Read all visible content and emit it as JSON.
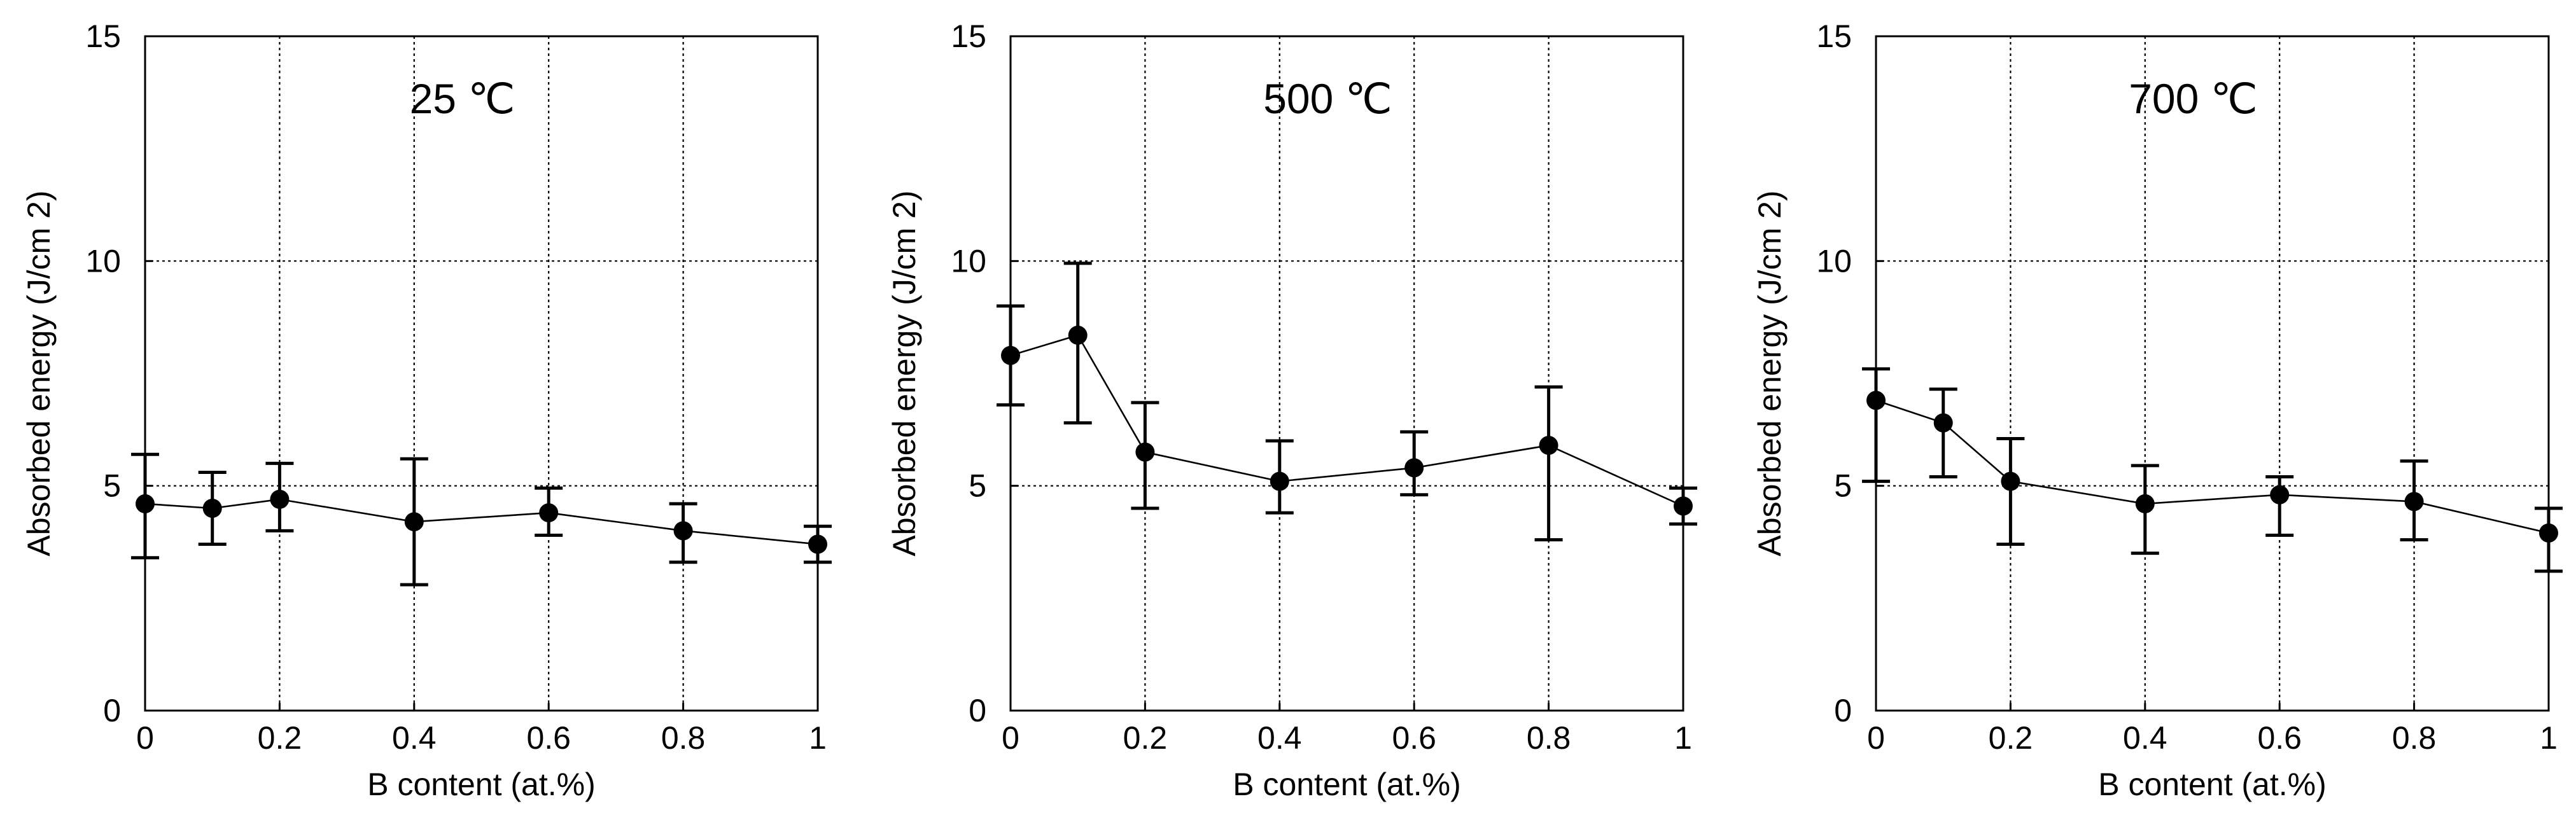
{
  "chart_data": [
    {
      "type": "scatter",
      "title": "",
      "annotation": "25 ℃",
      "xlabel": "B content (at.%)",
      "ylabel": "Absorbed energy (J/cm 2)",
      "xlim": [
        0,
        1
      ],
      "ylim": [
        0,
        15
      ],
      "x_ticks": [
        "0",
        "0.2",
        "0.4",
        "0.6",
        "0.8",
        "1"
      ],
      "y_ticks": [
        "0",
        "5",
        "10",
        "15"
      ],
      "grid": true,
      "points": [
        {
          "x": 0,
          "y": 4.6,
          "err_low": 3.4,
          "err_high": 5.7
        },
        {
          "x": 0.1,
          "y": 4.5,
          "err_low": 3.7,
          "err_high": 5.3
        },
        {
          "x": 0.2,
          "y": 4.7,
          "err_low": 4.0,
          "err_high": 5.5
        },
        {
          "x": 0.4,
          "y": 4.2,
          "err_low": 2.8,
          "err_high": 5.6
        },
        {
          "x": 0.6,
          "y": 4.4,
          "err_low": 3.9,
          "err_high": 4.95
        },
        {
          "x": 0.8,
          "y": 4.0,
          "err_low": 3.3,
          "err_high": 4.6
        },
        {
          "x": 1,
          "y": 3.7,
          "err_low": 3.3,
          "err_high": 4.1
        }
      ]
    },
    {
      "type": "scatter",
      "title": "",
      "annotation": "500 ℃",
      "xlabel": "B content (at.%)",
      "ylabel": "Absorbed energy (J/cm 2)",
      "xlim": [
        0,
        1
      ],
      "ylim": [
        0,
        15
      ],
      "x_ticks": [
        "0",
        "0.2",
        "0.4",
        "0.6",
        "0.8",
        "1"
      ],
      "y_ticks": [
        "0",
        "5",
        "10",
        "15"
      ],
      "grid": true,
      "points": [
        {
          "x": 0,
          "y": 7.9,
          "err_low": 6.8,
          "err_high": 9.0
        },
        {
          "x": 0.1,
          "y": 8.35,
          "err_low": 6.4,
          "err_high": 9.95
        },
        {
          "x": 0.2,
          "y": 5.75,
          "err_low": 4.5,
          "err_high": 6.85
        },
        {
          "x": 0.4,
          "y": 5.1,
          "err_low": 4.4,
          "err_high": 6.0
        },
        {
          "x": 0.6,
          "y": 5.4,
          "err_low": 4.8,
          "err_high": 6.2
        },
        {
          "x": 0.8,
          "y": 5.9,
          "err_low": 3.8,
          "err_high": 7.2
        },
        {
          "x": 1,
          "y": 4.55,
          "err_low": 4.15,
          "err_high": 4.95
        }
      ]
    },
    {
      "type": "scatter",
      "title": "",
      "annotation": "700 ℃",
      "xlabel": "B content (at.%)",
      "ylabel": "Absorbed energy (J/cm 2)",
      "xlim": [
        0,
        1
      ],
      "ylim": [
        0,
        15
      ],
      "x_ticks": [
        "0",
        "0.2",
        "0.4",
        "0.6",
        "0.8",
        "1"
      ],
      "y_ticks": [
        "0",
        "5",
        "10",
        "15"
      ],
      "grid": true,
      "points": [
        {
          "x": 0,
          "y": 6.9,
          "err_low": 5.1,
          "err_high": 7.6
        },
        {
          "x": 0.1,
          "y": 6.4,
          "err_low": 5.2,
          "err_high": 7.15
        },
        {
          "x": 0.2,
          "y": 5.1,
          "err_low": 3.7,
          "err_high": 6.05
        },
        {
          "x": 0.4,
          "y": 4.6,
          "err_low": 3.5,
          "err_high": 5.45
        },
        {
          "x": 0.6,
          "y": 4.8,
          "err_low": 3.9,
          "err_high": 5.2
        },
        {
          "x": 0.8,
          "y": 4.65,
          "err_low": 3.8,
          "err_high": 5.55
        },
        {
          "x": 1,
          "y": 3.95,
          "err_low": 3.1,
          "err_high": 4.5
        }
      ]
    }
  ]
}
